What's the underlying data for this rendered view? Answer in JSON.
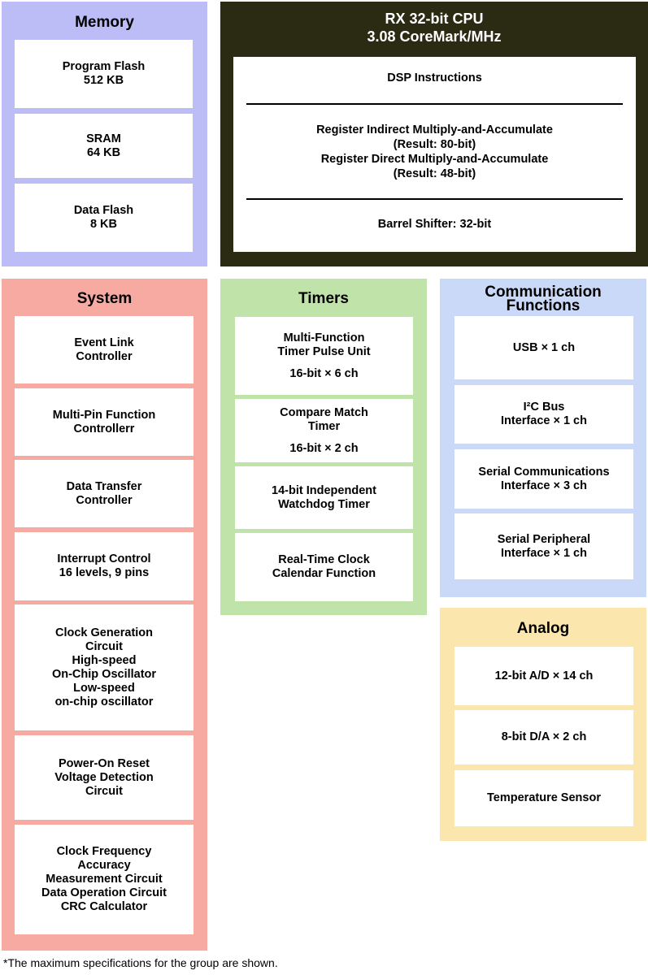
{
  "colors": {
    "memory": "#bcbcf7",
    "cpu": "#2b2a12",
    "system": "#f7aaa2",
    "timers": "#bfe3a9",
    "communication": "#c9d9f7",
    "analog": "#fbe6ad"
  },
  "memory": {
    "title": "Memory",
    "items": [
      {
        "lines": [
          "Program Flash",
          "512 KB"
        ]
      },
      {
        "lines": [
          "SRAM",
          "64 KB"
        ]
      },
      {
        "lines": [
          "Data Flash",
          "8 KB"
        ]
      }
    ]
  },
  "cpu": {
    "title_lines": [
      "RX 32-bit CPU",
      "3.08 CoreMark/MHz"
    ],
    "dsp": "DSP Instructions",
    "mac_lines": [
      "Register Indirect Multiply-and-Accumulate",
      "(Result: 80-bit)",
      "Register Direct Multiply-and-Accumulate",
      "(Result: 48-bit)"
    ],
    "barrel": "Barrel Shifter: 32-bit"
  },
  "system": {
    "title": "System",
    "items": [
      {
        "lines": [
          "Event Link",
          "Controller"
        ]
      },
      {
        "lines": [
          "Multi-Pin Function",
          "Controllerr"
        ]
      },
      {
        "lines": [
          "Data Transfer",
          "Controller"
        ]
      },
      {
        "lines": [
          "Interrupt Control",
          "16 levels, 9 pins"
        ]
      },
      {
        "lines": [
          "Clock Generation",
          "Circuit",
          "High-speed",
          "On-Chip Oscillator",
          "Low-speed",
          "on-chip oscillator"
        ]
      },
      {
        "lines": [
          "Power-On Reset",
          "Voltage Detection",
          "Circuit"
        ]
      },
      {
        "lines": [
          "Clock Frequency",
          "Accuracy",
          "Measurement Circuit",
          "Data Operation Circuit",
          "CRC Calculator"
        ]
      }
    ]
  },
  "timers": {
    "title": "Timers",
    "items": [
      {
        "lines": [
          "Multi-Function",
          "Timer Pulse Unit",
          "",
          "16-bit × 6 ch"
        ]
      },
      {
        "lines": [
          "Compare Match",
          "Timer",
          "",
          "16-bit × 2 ch"
        ]
      },
      {
        "lines": [
          "14-bit Independent",
          "Watchdog Timer"
        ]
      },
      {
        "lines": [
          "Real-Time Clock",
          "Calendar Function"
        ]
      }
    ]
  },
  "communication": {
    "title_lines": [
      "Communication",
      "Functions"
    ],
    "items": [
      {
        "lines": [
          "USB × 1 ch"
        ]
      },
      {
        "lines": [
          "I²C Bus",
          "Interface × 1 ch"
        ]
      },
      {
        "lines": [
          "Serial Communications",
          "Interface × 3 ch"
        ]
      },
      {
        "lines": [
          "Serial Peripheral",
          "Interface × 1 ch"
        ]
      }
    ]
  },
  "analog": {
    "title": "Analog",
    "items": [
      {
        "lines": [
          "12-bit A/D × 14 ch"
        ]
      },
      {
        "lines": [
          "8-bit D/A × 2 ch"
        ]
      },
      {
        "lines": [
          "Temperature Sensor"
        ]
      }
    ]
  },
  "footnote": "*The maximum specifications for the group are shown."
}
